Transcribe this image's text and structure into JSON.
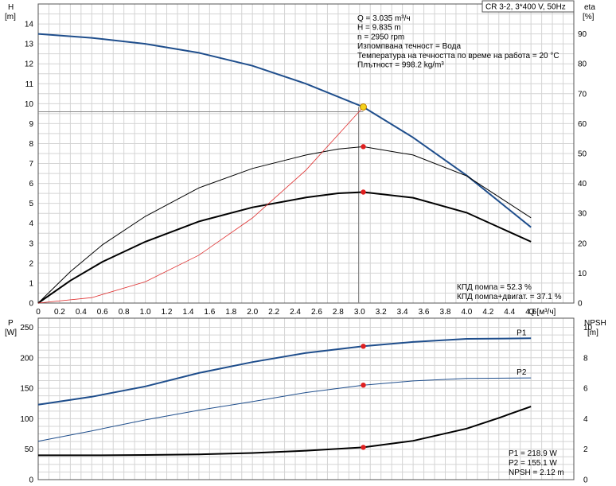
{
  "chart_data": {
    "type": "line",
    "title": "CR 3-2, 3*400 V, 50Hz",
    "operating_point": {
      "lines": [
        "Q = 3.035 m³/ч",
        "H = 9.835 m",
        "n = 2950 rpm",
        "Изпомпвана течност = Вода",
        "Температура на течността по време на работа = 20 °C",
        "Плътност = 998.2 kg/m³"
      ],
      "q": 3.035,
      "h": 9.835
    },
    "x": {
      "label": "Q [м³/ч]",
      "range": [
        0,
        5.0
      ],
      "ticks": [
        "0",
        "0.2",
        "0.4",
        "0.6",
        "0.8",
        "1.0",
        "1.2",
        "1.4",
        "1.6",
        "1.8",
        "2.0",
        "2.2",
        "2.4",
        "2.6",
        "2.8",
        "3.0",
        "3.2",
        "3.4",
        "3.6",
        "3.8",
        "4.0",
        "4.2",
        "4.4",
        "4.6"
      ]
    },
    "top_panel": {
      "left_axis": {
        "label": "H",
        "unit": "[m]",
        "range": [
          0,
          15
        ],
        "ticks": [
          "0",
          "1",
          "2",
          "3",
          "4",
          "5",
          "6",
          "7",
          "8",
          "9",
          "10",
          "11",
          "12",
          "13",
          "14"
        ]
      },
      "right_axis": {
        "label": "eta",
        "unit": "[%]",
        "range": [
          0,
          100
        ],
        "ticks": [
          "0",
          "10",
          "20",
          "30",
          "40",
          "50",
          "60",
          "70",
          "80",
          "90"
        ]
      },
      "series": [
        {
          "key": "head",
          "axis": "left",
          "color": "#1f4e8c",
          "points": [
            [
              0,
              13.5
            ],
            [
              0.5,
              13.3
            ],
            [
              1.0,
              13.0
            ],
            [
              1.5,
              12.55
            ],
            [
              2.0,
              11.9
            ],
            [
              2.5,
              11.0
            ],
            [
              3.035,
              9.835
            ],
            [
              3.5,
              8.3
            ],
            [
              4.0,
              6.4
            ],
            [
              4.6,
              3.8
            ]
          ]
        },
        {
          "key": "eta_pump",
          "axis": "right",
          "color": "#000000",
          "points": [
            [
              0,
              0
            ],
            [
              0.3,
              10.5
            ],
            [
              0.6,
              19.5
            ],
            [
              1.0,
              29
            ],
            [
              1.5,
              38.5
            ],
            [
              2.0,
              45
            ],
            [
              2.5,
              49.5
            ],
            [
              2.8,
              51.5
            ],
            [
              3.035,
              52.3
            ],
            [
              3.5,
              49.5
            ],
            [
              4.0,
              42.5
            ],
            [
              4.6,
              28.5
            ]
          ]
        },
        {
          "key": "eta_total",
          "axis": "right",
          "color": "#000000",
          "points": [
            [
              0,
              0
            ],
            [
              0.3,
              7.5
            ],
            [
              0.6,
              13.8
            ],
            [
              1.0,
              20.5
            ],
            [
              1.5,
              27.3
            ],
            [
              2.0,
              32
            ],
            [
              2.5,
              35.3
            ],
            [
              2.8,
              36.7
            ],
            [
              3.035,
              37.1
            ],
            [
              3.5,
              35.2
            ],
            [
              4.0,
              30.2
            ],
            [
              4.6,
              20.5
            ]
          ]
        },
        {
          "key": "system_curve",
          "axis": "left",
          "color": "#e03030",
          "points": [
            [
              0,
              0
            ],
            [
              0.5,
              0.27
            ],
            [
              1.0,
              1.07
            ],
            [
              1.5,
              2.4
            ],
            [
              2.0,
              4.27
            ],
            [
              2.5,
              6.67
            ],
            [
              3.035,
              9.835
            ]
          ]
        }
      ],
      "markers": {
        "eta_pump": 52.3,
        "eta_total": 37.1
      },
      "legend": [
        "КПД помпа = 52.3 %",
        "КПД помпа+двигат. = 37.1 %"
      ]
    },
    "bottom_panel": {
      "left_axis": {
        "label": "P",
        "unit": "[W]",
        "range": [
          0,
          265
        ],
        "ticks": [
          "0",
          "50",
          "100",
          "150",
          "200",
          "250"
        ]
      },
      "right_axis": {
        "label": "NPSH",
        "unit": "[m]",
        "range": [
          0,
          10.6
        ],
        "ticks": [
          "0",
          "2",
          "4",
          "6",
          "8",
          "10"
        ]
      },
      "series": [
        {
          "key": "p1",
          "name": "P1",
          "axis": "left",
          "color": "#1f4e8c",
          "points": [
            [
              0,
              123
            ],
            [
              0.5,
              136
            ],
            [
              1.0,
              153
            ],
            [
              1.5,
              175
            ],
            [
              2.0,
              193
            ],
            [
              2.5,
              208
            ],
            [
              3.035,
              218.9
            ],
            [
              3.5,
              226
            ],
            [
              4.0,
              231
            ],
            [
              4.6,
              232
            ]
          ]
        },
        {
          "key": "p2",
          "name": "P2",
          "axis": "left",
          "color": "#1f4e8c",
          "points": [
            [
              0,
              63
            ],
            [
              0.5,
              80
            ],
            [
              1.0,
              98
            ],
            [
              1.5,
              114
            ],
            [
              2.0,
              128
            ],
            [
              2.5,
              143
            ],
            [
              3.035,
              155.1
            ],
            [
              3.5,
              162
            ],
            [
              4.0,
              166
            ],
            [
              4.6,
              167
            ]
          ]
        },
        {
          "key": "npsh",
          "axis": "right",
          "color": "#000000",
          "points": [
            [
              0,
              1.6
            ],
            [
              0.5,
              1.6
            ],
            [
              1.0,
              1.62
            ],
            [
              1.5,
              1.66
            ],
            [
              2.0,
              1.75
            ],
            [
              2.5,
              1.9
            ],
            [
              3.035,
              2.12
            ],
            [
              3.5,
              2.55
            ],
            [
              4.0,
              3.35
            ],
            [
              4.3,
              4.05
            ],
            [
              4.6,
              4.8
            ]
          ]
        }
      ],
      "markers": {
        "p1": 218.9,
        "p2": 155.1,
        "npsh": 2.12
      },
      "legend": [
        "P1 = 218.9 W",
        "P2 = 155.1 W",
        "NPSH = 2.12 m"
      ]
    },
    "grid": true
  }
}
